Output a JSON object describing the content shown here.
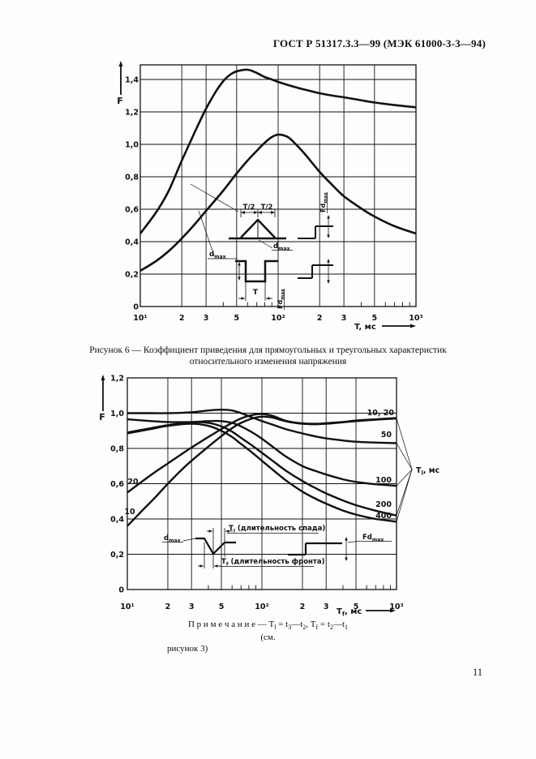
{
  "page": {
    "header_title": "ГОСТ Р 51317.3.3—99 (МЭК 61000-3-3—94)",
    "page_number": "11"
  },
  "figure6_caption": {
    "line1": "Рисунок 6 — Коэффициент приведения для прямоугольных и треугольных характеристик",
    "line2": "относительного изменения напряжения"
  },
  "note": {
    "p1": "П р и м е ч а н и е — Т",
    "s1": "l",
    "p2": " = t",
    "s2": "3",
    "p3": "—t",
    "s3": "2",
    "p4": ", Т",
    "s4": "f",
    "p5": " = t",
    "s5": "2",
    "p6": "—t",
    "s6": "1",
    "see": "(см.",
    "fig_ref": "рисунок 3)"
  },
  "colors": {
    "ink": "#111111",
    "paper": "#fdfdfd"
  },
  "chart_data": [
    {
      "type": "line",
      "title": "Рисунок 6",
      "ylabel": "F",
      "xlabel_parts": [
        {
          "t": "T"
        },
        {
          "t": ", мс"
        }
      ],
      "xscale": "log",
      "xlim": [
        10,
        1000
      ],
      "ylim": [
        0,
        1.49
      ],
      "grid": true,
      "x_gridlines": [
        10,
        20,
        30,
        50,
        100,
        200,
        300,
        500,
        1000
      ],
      "x_minor_ticks": [
        40,
        60,
        70,
        80,
        90,
        400,
        600,
        700,
        800,
        900
      ],
      "x_ticks": [
        {
          "v": 10,
          "t": "10¹"
        },
        {
          "v": 20,
          "t": "2"
        },
        {
          "v": 30,
          "t": "3"
        },
        {
          "v": 50,
          "t": "5"
        },
        {
          "v": 100,
          "t": "10²"
        },
        {
          "v": 200,
          "t": "2"
        },
        {
          "v": 300,
          "t": "3"
        },
        {
          "v": 500,
          "t": "5"
        },
        {
          "v": 1000,
          "t": "10³"
        }
      ],
      "y_ticks": [
        {
          "v": 0,
          "t": "0"
        },
        {
          "v": 0.2,
          "t": "0,2"
        },
        {
          "v": 0.4,
          "t": "0,4"
        },
        {
          "v": 0.6,
          "t": "0,6"
        },
        {
          "v": 0.8,
          "t": "0,8"
        },
        {
          "v": 1.0,
          "t": "1,0"
        },
        {
          "v": 1.2,
          "t": "1,2"
        },
        {
          "v": 1.4,
          "t": "1,4"
        }
      ],
      "series": [
        {
          "name": "rectangular",
          "points": [
            [
              10,
              0.45
            ],
            [
              13,
              0.58
            ],
            [
              16,
              0.71
            ],
            [
              20,
              0.9
            ],
            [
              25,
              1.08
            ],
            [
              30,
              1.22
            ],
            [
              35,
              1.32
            ],
            [
              40,
              1.39
            ],
            [
              45,
              1.43
            ],
            [
              50,
              1.45
            ],
            [
              60,
              1.46
            ],
            [
              70,
              1.44
            ],
            [
              80,
              1.415
            ],
            [
              90,
              1.4
            ],
            [
              100,
              1.385
            ],
            [
              130,
              1.355
            ],
            [
              160,
              1.335
            ],
            [
              200,
              1.315
            ],
            [
              250,
              1.3
            ],
            [
              300,
              1.29
            ],
            [
              400,
              1.272
            ],
            [
              500,
              1.258
            ],
            [
              700,
              1.242
            ],
            [
              1000,
              1.228
            ]
          ]
        },
        {
          "name": "triangular",
          "points": [
            [
              10,
              0.22
            ],
            [
              13,
              0.28
            ],
            [
              16,
              0.34
            ],
            [
              20,
              0.42
            ],
            [
              25,
              0.51
            ],
            [
              30,
              0.59
            ],
            [
              40,
              0.715
            ],
            [
              50,
              0.82
            ],
            [
              60,
              0.9
            ],
            [
              70,
              0.96
            ],
            [
              80,
              1.01
            ],
            [
              90,
              1.045
            ],
            [
              100,
              1.06
            ],
            [
              110,
              1.055
            ],
            [
              120,
              1.04
            ],
            [
              140,
              0.985
            ],
            [
              160,
              0.93
            ],
            [
              200,
              0.83
            ],
            [
              250,
              0.745
            ],
            [
              300,
              0.68
            ],
            [
              400,
              0.605
            ],
            [
              500,
              0.555
            ],
            [
              700,
              0.495
            ],
            [
              1000,
              0.45
            ]
          ]
        }
      ],
      "labels": {
        "t_half": "T/2",
        "t": "T",
        "d_max": [
          {
            "t": "d"
          },
          {
            "t": "max",
            "sub": true
          }
        ],
        "fd_max": [
          {
            "t": "Fd"
          },
          {
            "t": "max",
            "sub": true
          }
        ]
      }
    },
    {
      "type": "line",
      "title": "семейство кривых F",
      "ylabel": "F",
      "xlabel_parts": [
        {
          "t": "T"
        },
        {
          "t": "f",
          "sub": true
        },
        {
          "t": ", мс"
        }
      ],
      "family_label_parts": [
        {
          "t": "T"
        },
        {
          "t": "l",
          "sub": true
        },
        {
          "t": ", мс"
        }
      ],
      "xscale": "log",
      "xlim": [
        10,
        1000
      ],
      "ylim": [
        0,
        1.2
      ],
      "grid": true,
      "x_gridlines": [
        10,
        20,
        30,
        50,
        100,
        200,
        300,
        500,
        1000
      ],
      "x_minor_ticks": [
        40,
        60,
        70,
        80,
        90,
        400,
        600,
        700,
        800,
        900
      ],
      "x_ticks": [
        {
          "v": 10,
          "t": "10¹"
        },
        {
          "v": 20,
          "t": "2"
        },
        {
          "v": 30,
          "t": "3"
        },
        {
          "v": 50,
          "t": "5"
        },
        {
          "v": 100,
          "t": "10²"
        },
        {
          "v": 200,
          "t": "2"
        },
        {
          "v": 300,
          "t": "3"
        },
        {
          "v": 500,
          "t": "5"
        },
        {
          "v": 1000,
          "t": "10³"
        }
      ],
      "y_ticks": [
        {
          "v": 0,
          "t": "0"
        },
        {
          "v": 0.2,
          "t": "0,2"
        },
        {
          "v": 0.4,
          "t": "0,4"
        },
        {
          "v": 0.6,
          "t": "0,6"
        },
        {
          "v": 0.8,
          "t": "0,8"
        },
        {
          "v": 1.0,
          "t": "1,0"
        },
        {
          "v": 1.2,
          "t": "1,2"
        }
      ],
      "series": [
        {
          "name": "10",
          "points": [
            [
              10,
              0.36
            ],
            [
              13,
              0.45
            ],
            [
              16,
              0.52
            ],
            [
              20,
              0.6
            ],
            [
              25,
              0.675
            ],
            [
              30,
              0.73
            ],
            [
              40,
              0.81
            ],
            [
              50,
              0.87
            ],
            [
              60,
              0.915
            ],
            [
              70,
              0.945
            ],
            [
              85,
              0.97
            ],
            [
              100,
              0.98
            ],
            [
              120,
              0.975
            ],
            [
              140,
              0.96
            ],
            [
              160,
              0.95
            ],
            [
              200,
              0.94
            ],
            [
              250,
              0.937
            ],
            [
              300,
              0.94
            ],
            [
              400,
              0.948
            ],
            [
              500,
              0.955
            ],
            [
              700,
              0.963
            ],
            [
              1000,
              0.97
            ]
          ]
        },
        {
          "name": "20",
          "points": [
            [
              10,
              0.55
            ],
            [
              13,
              0.615
            ],
            [
              16,
              0.665
            ],
            [
              20,
              0.715
            ],
            [
              25,
              0.765
            ],
            [
              30,
              0.805
            ],
            [
              40,
              0.865
            ],
            [
              50,
              0.91
            ],
            [
              60,
              0.945
            ],
            [
              70,
              0.97
            ],
            [
              85,
              0.99
            ],
            [
              100,
              0.995
            ],
            [
              120,
              0.985
            ],
            [
              140,
              0.965
            ],
            [
              160,
              0.952
            ],
            [
              200,
              0.942
            ],
            [
              250,
              0.94
            ],
            [
              300,
              0.943
            ],
            [
              400,
              0.95
            ],
            [
              500,
              0.958
            ],
            [
              700,
              0.965
            ],
            [
              1000,
              0.972
            ]
          ]
        },
        {
          "name": "50",
          "points": [
            [
              10,
              1.0
            ],
            [
              15,
              1.0
            ],
            [
              20,
              1.0
            ],
            [
              30,
              1.005
            ],
            [
              40,
              1.015
            ],
            [
              50,
              1.02
            ],
            [
              60,
              1.015
            ],
            [
              70,
              1.0
            ],
            [
              85,
              0.975
            ],
            [
              100,
              0.955
            ],
            [
              120,
              0.935
            ],
            [
              150,
              0.91
            ],
            [
              200,
              0.885
            ],
            [
              250,
              0.868
            ],
            [
              300,
              0.857
            ],
            [
              400,
              0.845
            ],
            [
              500,
              0.838
            ],
            [
              700,
              0.833
            ],
            [
              1000,
              0.83
            ]
          ]
        },
        {
          "name": "100",
          "points": [
            [
              10,
              0.965
            ],
            [
              15,
              0.955
            ],
            [
              20,
              0.95
            ],
            [
              30,
              0.95
            ],
            [
              40,
              0.955
            ],
            [
              50,
              0.955
            ],
            [
              60,
              0.945
            ],
            [
              70,
              0.925
            ],
            [
              85,
              0.89
            ],
            [
              100,
              0.855
            ],
            [
              120,
              0.81
            ],
            [
              150,
              0.755
            ],
            [
              200,
              0.7
            ],
            [
              250,
              0.672
            ],
            [
              300,
              0.652
            ],
            [
              400,
              0.625
            ],
            [
              500,
              0.61
            ],
            [
              700,
              0.597
            ],
            [
              1000,
              0.588
            ]
          ]
        },
        {
          "name": "200",
          "points": [
            [
              10,
              0.89
            ],
            [
              15,
              0.915
            ],
            [
              20,
              0.932
            ],
            [
              30,
              0.948
            ],
            [
              40,
              0.945
            ],
            [
              50,
              0.925
            ],
            [
              60,
              0.895
            ],
            [
              70,
              0.86
            ],
            [
              85,
              0.815
            ],
            [
              100,
              0.775
            ],
            [
              120,
              0.73
            ],
            [
              150,
              0.675
            ],
            [
              200,
              0.615
            ],
            [
              250,
              0.575
            ],
            [
              300,
              0.545
            ],
            [
              400,
              0.505
            ],
            [
              500,
              0.478
            ],
            [
              700,
              0.447
            ],
            [
              1000,
              0.42
            ]
          ]
        },
        {
          "name": "400",
          "points": [
            [
              10,
              0.885
            ],
            [
              15,
              0.91
            ],
            [
              20,
              0.928
            ],
            [
              30,
              0.94
            ],
            [
              40,
              0.928
            ],
            [
              50,
              0.9
            ],
            [
              60,
              0.865
            ],
            [
              70,
              0.825
            ],
            [
              85,
              0.775
            ],
            [
              100,
              0.73
            ],
            [
              120,
              0.68
            ],
            [
              150,
              0.62
            ],
            [
              200,
              0.555
            ],
            [
              250,
              0.515
            ],
            [
              300,
              0.487
            ],
            [
              400,
              0.448
            ],
            [
              500,
              0.425
            ],
            [
              700,
              0.4
            ],
            [
              1000,
              0.385
            ]
          ]
        }
      ],
      "curve_labels_right": [
        "10, 20",
        "50",
        "100",
        "200",
        "400"
      ],
      "curve_labels_left": [
        "20",
        "10"
      ],
      "labels": {
        "d_max": [
          {
            "t": "d"
          },
          {
            "t": "max",
            "sub": true
          }
        ],
        "fd_max": [
          {
            "t": "Fd"
          },
          {
            "t": "max",
            "sub": true
          }
        ],
        "fall_parts": [
          {
            "t": "T"
          },
          {
            "t": "l",
            "sub": true
          },
          {
            "t": " (длительность спада)"
          }
        ],
        "front_parts": [
          {
            "t": "T"
          },
          {
            "t": "f",
            "sub": true
          },
          {
            "t": " (длительность фронта)"
          }
        ]
      }
    }
  ]
}
